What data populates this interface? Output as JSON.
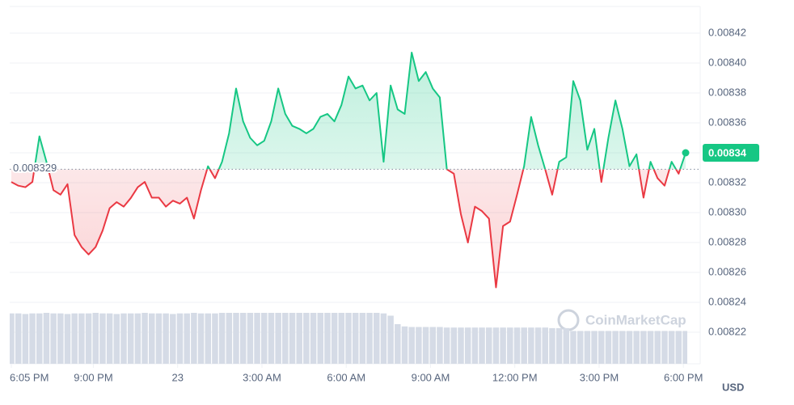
{
  "chart_data": {
    "type": "line",
    "x": [
      0,
      0.25,
      0.5,
      0.75,
      1,
      1.25,
      1.5,
      1.75,
      2,
      2.25,
      2.5,
      2.75,
      3,
      3.25,
      3.5,
      3.75,
      4,
      4.25,
      4.5,
      4.75,
      5,
      5.25,
      5.5,
      5.75,
      6,
      6.25,
      6.5,
      6.75,
      7,
      7.25,
      7.5,
      7.75,
      8,
      8.25,
      8.5,
      8.75,
      9,
      9.25,
      9.5,
      9.75,
      10,
      10.25,
      10.5,
      10.75,
      11,
      11.25,
      11.5,
      11.75,
      12,
      12.25,
      12.5,
      12.75,
      13,
      13.25,
      13.5,
      13.75,
      14,
      14.25,
      14.5,
      14.75,
      15,
      15.25,
      15.5,
      15.75,
      16,
      16.25,
      16.5,
      16.75,
      17,
      17.25,
      17.5,
      17.75,
      18,
      18.25,
      18.5,
      18.75,
      19,
      19.25,
      19.5,
      19.75,
      20,
      20.25,
      20.5,
      20.75,
      21,
      21.25,
      21.5,
      21.75,
      22,
      22.25,
      22.5,
      22.75,
      23,
      23.25,
      23.5,
      23.75,
      24
    ],
    "series": [
      {
        "name": "USD",
        "color": "#16c784",
        "below_color": "#ea3943",
        "values": [
          0.0083205,
          0.008318,
          0.008317,
          0.0083205,
          0.008351,
          0.008334,
          0.008315,
          0.008312,
          0.008319,
          0.008285,
          0.008277,
          0.008272,
          0.008277,
          0.008288,
          0.008303,
          0.008307,
          0.008304,
          0.0083097,
          0.008317,
          0.0083205,
          0.00831,
          0.00831,
          0.008304,
          0.008308,
          0.008306,
          0.00831,
          0.008296,
          0.008315,
          0.008331,
          0.008323,
          0.008334,
          0.008353,
          0.008383,
          0.008361,
          0.00835,
          0.008345,
          0.008348,
          0.008361,
          0.008383,
          0.008366,
          0.008358,
          0.008356,
          0.008353,
          0.008356,
          0.008364,
          0.008366,
          0.008361,
          0.008372,
          0.008391,
          0.008383,
          0.008385,
          0.008375,
          0.00838,
          0.008334,
          0.008385,
          0.008369,
          0.008366,
          0.008407,
          0.008388,
          0.008394,
          0.008383,
          0.008377,
          0.008329,
          0.008326,
          0.008299,
          0.00828,
          0.008304,
          0.008301,
          0.008296,
          0.00825,
          0.008291,
          0.008294,
          0.008312,
          0.008331,
          0.008364,
          0.008345,
          0.008329,
          0.008312,
          0.008334,
          0.008337,
          0.008388,
          0.008375,
          0.008342,
          0.008356,
          0.0083205,
          0.00835,
          0.008375,
          0.008356,
          0.008331,
          0.008339,
          0.00831,
          0.008334,
          0.008323,
          0.008318,
          0.008334,
          0.008326,
          0.00834
        ]
      }
    ],
    "volume": {
      "color": "#d5dbe6",
      "ylim": [
        0,
        100
      ],
      "values": [
        89,
        89,
        88,
        89,
        89,
        90,
        89,
        89,
        88,
        89,
        89,
        89,
        90,
        89,
        89,
        88,
        89,
        89,
        89,
        90,
        89,
        89,
        89,
        88,
        89,
        89,
        90,
        89,
        89,
        89,
        90,
        90,
        90,
        90,
        90,
        90,
        90,
        90,
        90,
        90,
        90,
        90,
        90,
        90,
        90,
        90,
        90,
        90,
        90,
        90,
        90,
        90,
        90,
        89,
        85,
        70,
        66,
        65,
        65,
        65,
        65,
        65,
        64,
        64,
        64,
        64,
        64,
        64,
        64,
        64,
        64,
        64,
        64,
        64,
        64,
        64,
        64,
        63,
        63,
        63,
        58,
        58,
        58,
        58,
        58,
        58,
        58,
        58,
        58,
        58,
        58,
        58,
        58,
        58,
        58,
        58,
        58
      ]
    },
    "baseline": 0.008329,
    "baseline_label": "0.008329",
    "last_label": "0.00834",
    "xlim": [
      0,
      24
    ],
    "xticks": [
      {
        "value": 0,
        "label": "6:05 PM"
      },
      {
        "value": 2.92,
        "label": "9:00 PM"
      },
      {
        "value": 5.92,
        "label": "23"
      },
      {
        "value": 8.92,
        "label": "3:00 AM"
      },
      {
        "value": 11.92,
        "label": "6:00 AM"
      },
      {
        "value": 14.92,
        "label": "9:00 AM"
      },
      {
        "value": 17.92,
        "label": "12:00 PM"
      },
      {
        "value": 20.92,
        "label": "3:00 PM"
      },
      {
        "value": 23.92,
        "label": "6:00 PM"
      }
    ],
    "ylim": [
      0.0082,
      0.00844
    ],
    "yticks": [
      0.00822,
      0.00824,
      0.00826,
      0.00828,
      {
        "value": 0.0083,
        "label": "0.00830"
      },
      0.00832,
      0.00834,
      0.00836,
      0.00838,
      {
        "value": 0.0084,
        "label": "0.00840"
      },
      0.00842
    ],
    "grid": true,
    "currency": "USD",
    "watermark": "CoinMarketCap"
  }
}
